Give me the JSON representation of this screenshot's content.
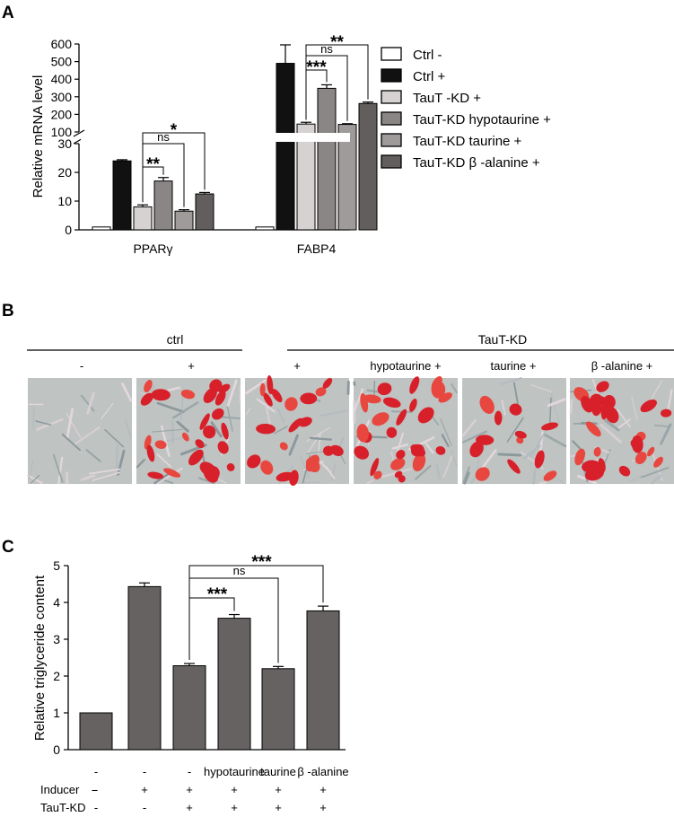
{
  "panels": {
    "a": "A",
    "b": "B",
    "c": "C"
  },
  "colors": {
    "ctrl_minus": "#ffffff",
    "ctrl_plus": "#111111",
    "tautkd_plus": "#d6d2d1",
    "hypotaurine": "#8a8685",
    "taurine": "#9f9b9a",
    "balanine": "#625e5d",
    "panel_c_bar": "#666262"
  },
  "legend": [
    {
      "label": "Ctrl -",
      "color": "#ffffff"
    },
    {
      "label": "Ctrl +",
      "color": "#111111"
    },
    {
      "label": "TauT -KD +",
      "color": "#d6d2d1"
    },
    {
      "label": "TauT-KD hypotaurine +",
      "color": "#8a8685"
    },
    {
      "label": "TauT-KD taurine +",
      "color": "#9f9b9a"
    },
    {
      "label": "TauT-KD β -alanine +",
      "color": "#625e5d"
    }
  ],
  "chart_data": [
    {
      "type": "bar",
      "panel": "A",
      "ylabel": "Relative mRNA level",
      "categories": [
        "PPARγ",
        "FABP4"
      ],
      "series": [
        {
          "name": "Ctrl -",
          "values": [
            1,
            1
          ],
          "errors": [
            0,
            0
          ]
        },
        {
          "name": "Ctrl +",
          "values": [
            24,
            490
          ],
          "errors": [
            0.4,
            105
          ]
        },
        {
          "name": "TauT -KD +",
          "values": [
            8,
            145
          ],
          "errors": [
            0.7,
            10
          ]
        },
        {
          "name": "TauT-KD hypotaurine +",
          "values": [
            17,
            348
          ],
          "errors": [
            1.2,
            20
          ]
        },
        {
          "name": "TauT-KD taurine +",
          "values": [
            6.5,
            143
          ],
          "errors": [
            0.5,
            4
          ]
        },
        {
          "name": "TauT-KD β -alanine +",
          "values": [
            12.5,
            262
          ],
          "errors": [
            0.5,
            8
          ]
        }
      ],
      "axis_break": true,
      "lower_range": [
        0,
        30
      ],
      "lower_ticks": [
        "0",
        "10",
        "20",
        "30"
      ],
      "upper_range": [
        100,
        600
      ],
      "upper_ticks": [
        "100",
        "200",
        "300",
        "400",
        "500",
        "600"
      ],
      "significance": [
        {
          "group": "PPARγ",
          "from": "TauT -KD +",
          "to": "TauT-KD hypotaurine +",
          "label": "**"
        },
        {
          "group": "PPARγ",
          "from": "TauT -KD +",
          "to": "TauT-KD taurine +",
          "label": "ns"
        },
        {
          "group": "PPARγ",
          "from": "TauT -KD +",
          "to": "TauT-KD β -alanine +",
          "label": "*"
        },
        {
          "group": "FABP4",
          "from": "TauT -KD +",
          "to": "TauT-KD hypotaurine +",
          "label": "***"
        },
        {
          "group": "FABP4",
          "from": "TauT -KD +",
          "to": "TauT-KD taurine +",
          "label": "ns"
        },
        {
          "group": "FABP4",
          "from": "TauT -KD +",
          "to": "TauT-KD β -alanine +",
          "label": "**"
        }
      ]
    },
    {
      "type": "bar",
      "panel": "C",
      "ylabel": "Relative triglyceride content",
      "ylim": [
        0,
        5
      ],
      "yticks": [
        "0",
        "1",
        "2",
        "3",
        "4",
        "5"
      ],
      "values": [
        1.0,
        4.43,
        2.28,
        3.57,
        2.2,
        3.77
      ],
      "errors": [
        0,
        0.1,
        0.06,
        0.1,
        0.06,
        0.13
      ],
      "conditions": {
        "treatment": [
          "-",
          "-",
          "-",
          "hypotaurine",
          "taurine",
          "β -alanine"
        ],
        "inducer_label": "Inducer",
        "inducer": [
          "-",
          "+",
          "+",
          "+",
          "+",
          "+"
        ],
        "tautkd_label": "TauT-KD",
        "tautkd": [
          "-",
          "-",
          "+",
          "+",
          "+",
          "+"
        ]
      },
      "significance": [
        {
          "from": 2,
          "to": 3,
          "label": "***"
        },
        {
          "from": 2,
          "to": 4,
          "label": "ns"
        },
        {
          "from": 2,
          "to": 5,
          "label": "***"
        }
      ]
    }
  ],
  "panel_b": {
    "group_ctrl": "ctrl",
    "group_tautkd": "TauT-KD",
    "tiles": [
      {
        "label": "-",
        "stain": "none"
      },
      {
        "label": "+",
        "stain": "heavy"
      },
      {
        "label": "+",
        "stain": "medium"
      },
      {
        "label": "hypotaurine +",
        "stain": "heavy"
      },
      {
        "label": "taurine +",
        "stain": "light"
      },
      {
        "label": "β -alanine +",
        "stain": "heavy"
      }
    ]
  }
}
